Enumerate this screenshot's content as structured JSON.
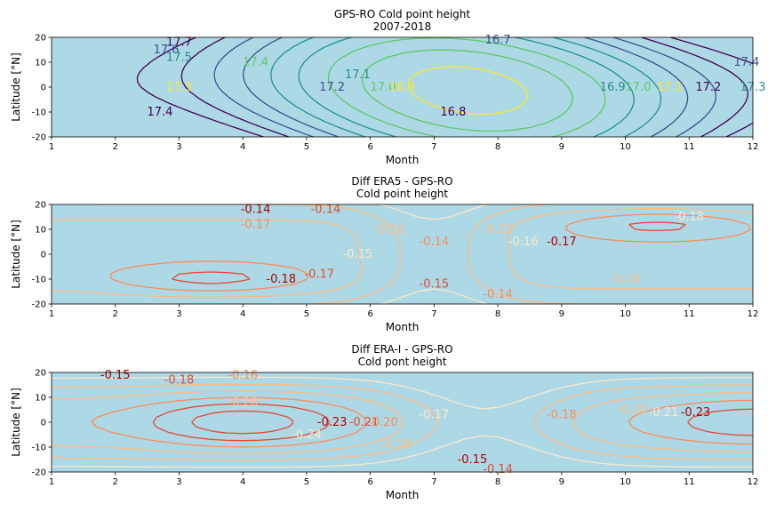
{
  "chart_data": [
    {
      "type": "contour",
      "title": "GPS-RO Cold point height\n2007-2018",
      "xlabel": "Month",
      "ylabel": "Latitude [°N]",
      "xlim": [
        1,
        12
      ],
      "ylim": [
        -20,
        20
      ],
      "xticks": [
        1,
        2,
        3,
        4,
        5,
        6,
        7,
        8,
        9,
        10,
        11,
        12
      ],
      "yticks": [
        -20,
        -10,
        0,
        10,
        20
      ],
      "background": "#add8e6",
      "colormap": "viridis",
      "levels": [
        17.3,
        17.4,
        17.5,
        17.6,
        17.7,
        16.8,
        16.9,
        17.0,
        17.1,
        17.2,
        16.7
      ],
      "contour_labels": [
        {
          "text": "17.7",
          "x": 3.0,
          "y": 18
        },
        {
          "text": "17.6",
          "x": 2.8,
          "y": 15
        },
        {
          "text": "17.5",
          "x": 3.0,
          "y": 12
        },
        {
          "text": "17.4",
          "x": 4.2,
          "y": 10
        },
        {
          "text": "17.3",
          "x": 3.0,
          "y": 0
        },
        {
          "text": "17.4",
          "x": 2.7,
          "y": -10
        },
        {
          "text": "17.2",
          "x": 5.4,
          "y": 0
        },
        {
          "text": "17.1",
          "x": 5.8,
          "y": 5
        },
        {
          "text": "17.0",
          "x": 6.2,
          "y": 0
        },
        {
          "text": "16.9",
          "x": 6.5,
          "y": 0
        },
        {
          "text": "16.8",
          "x": 7.3,
          "y": -10
        },
        {
          "text": "16.7",
          "x": 8.0,
          "y": 19
        },
        {
          "text": "16.9",
          "x": 9.8,
          "y": 0
        },
        {
          "text": "17.0",
          "x": 10.2,
          "y": 0
        },
        {
          "text": "17.1",
          "x": 10.7,
          "y": 0
        },
        {
          "text": "17.2",
          "x": 11.3,
          "y": 0
        },
        {
          "text": "17.4",
          "x": 11.9,
          "y": 10
        },
        {
          "text": "17.3",
          "x": 12.0,
          "y": 0
        }
      ]
    },
    {
      "type": "contour",
      "title": "Diff ERA5 - GPS-RO\nCold point height",
      "xlabel": "Month",
      "ylabel": "Latitude [°N]",
      "xlim": [
        1,
        12
      ],
      "ylim": [
        -20,
        20
      ],
      "xticks": [
        1,
        2,
        3,
        4,
        5,
        6,
        7,
        8,
        9,
        10,
        11,
        12
      ],
      "yticks": [
        -20,
        -10,
        0,
        10,
        20
      ],
      "background": "#add8e6",
      "colormap": "OrRd",
      "contour_labels": [
        {
          "text": "-0.14",
          "x": 4.2,
          "y": 18
        },
        {
          "text": "-0.14",
          "x": 5.3,
          "y": 18
        },
        {
          "text": "-0.17",
          "x": 4.2,
          "y": 12
        },
        {
          "text": "-0.16",
          "x": 6.3,
          "y": 10
        },
        {
          "text": "-0.15",
          "x": 5.8,
          "y": 0
        },
        {
          "text": "-0.18",
          "x": 4.6,
          "y": -10
        },
        {
          "text": "-0.17",
          "x": 5.2,
          "y": -8
        },
        {
          "text": "-0.14",
          "x": 7.0,
          "y": 5
        },
        {
          "text": "-0.15",
          "x": 8.0,
          "y": 10
        },
        {
          "text": "-0.16",
          "x": 8.4,
          "y": 5
        },
        {
          "text": "-0.17",
          "x": 9.0,
          "y": 5
        },
        {
          "text": "-0.15",
          "x": 7.0,
          "y": -12
        },
        {
          "text": "-0.14",
          "x": 8.0,
          "y": -16
        },
        {
          "text": "-0.16",
          "x": 10.0,
          "y": -10
        },
        {
          "text": "-0.18",
          "x": 11.0,
          "y": 15
        }
      ]
    },
    {
      "type": "contour",
      "title": "Diff ERA-I - GPS-RO\nCold pont height",
      "xlabel": "Month",
      "ylabel": "Latitude [°N]",
      "xlim": [
        1,
        12
      ],
      "ylim": [
        -20,
        20
      ],
      "xticks": [
        1,
        2,
        3,
        4,
        5,
        6,
        7,
        8,
        9,
        10,
        11,
        12
      ],
      "yticks": [
        -20,
        -10,
        0,
        10,
        20
      ],
      "background": "#add8e6",
      "colormap": "OrRd",
      "contour_labels": [
        {
          "text": "-0.15",
          "x": 2.0,
          "y": 19
        },
        {
          "text": "-0.18",
          "x": 3.0,
          "y": 17
        },
        {
          "text": "-0.16",
          "x": 4.0,
          "y": 19
        },
        {
          "text": "-0.26",
          "x": 4.0,
          "y": 8
        },
        {
          "text": "-0.24",
          "x": 5.0,
          "y": -5
        },
        {
          "text": "-0.23",
          "x": 5.4,
          "y": 0
        },
        {
          "text": "-0.21",
          "x": 5.9,
          "y": 0
        },
        {
          "text": "-0.20",
          "x": 6.2,
          "y": 0
        },
        {
          "text": "-0.18",
          "x": 6.4,
          "y": -9
        },
        {
          "text": "-0.17",
          "x": 7.0,
          "y": 3
        },
        {
          "text": "-0.15",
          "x": 7.6,
          "y": -15
        },
        {
          "text": "-0.14",
          "x": 8.0,
          "y": -19
        },
        {
          "text": "-0.18",
          "x": 9.0,
          "y": 3
        },
        {
          "text": "-0.20",
          "x": 10.1,
          "y": 5
        },
        {
          "text": "-0.21",
          "x": 10.6,
          "y": 4
        },
        {
          "text": "-0.23",
          "x": 11.1,
          "y": 4
        }
      ]
    }
  ]
}
